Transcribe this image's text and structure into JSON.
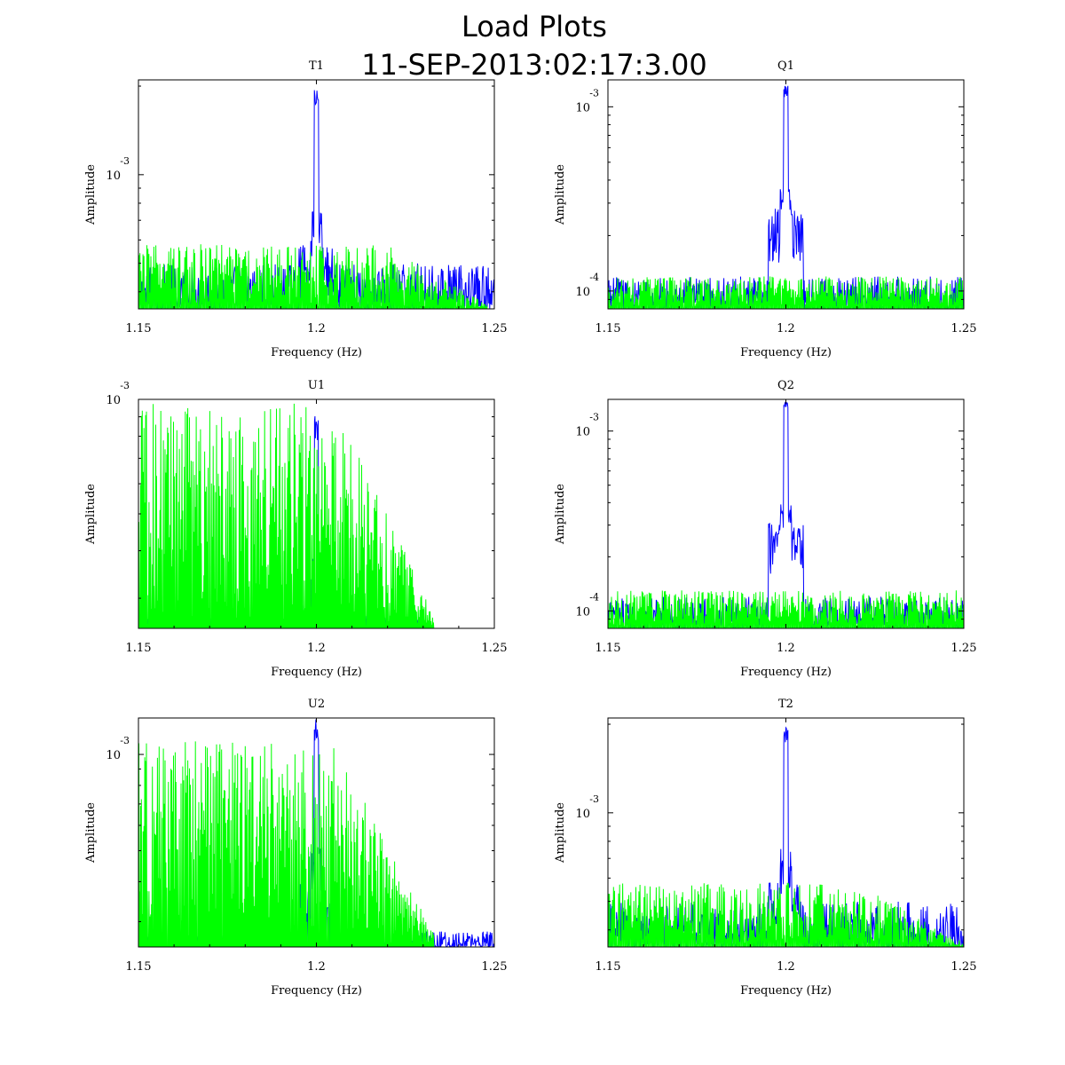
{
  "figure": {
    "title": "Load Plots",
    "subtitle": "11-SEP-2013:02:17:3.00",
    "colors": {
      "series_a": "#0000ff",
      "series_b": "#00ff00",
      "axes": "#000000"
    }
  },
  "chart_data": [
    {
      "type": "line",
      "title": "T1",
      "xlabel": "Frequency (Hz)",
      "ylabel": "Amplitude",
      "xlim": [
        1.15,
        1.25
      ],
      "xticks": [
        "1.15",
        "1.2",
        "1.25"
      ],
      "yscale": "log",
      "ylim": [
        0.00035,
        0.0021
      ],
      "ytick_labels": [
        {
          "value": 0.001,
          "base": "10",
          "exp": "-3"
        }
      ],
      "peak": {
        "x": 1.2,
        "y": 0.002
      },
      "series": [
        {
          "color": "#0000ff",
          "baseline": 0.00037,
          "peak": 0.002,
          "sidelobe": 0.00058,
          "noise_range": [
            0.00035,
            0.0005
          ],
          "x_range": [
            1.15,
            1.25
          ]
        },
        {
          "color": "#00ff00",
          "noise_range": [
            0.00035,
            0.00058
          ],
          "x_range": [
            1.15,
            1.248
          ],
          "envelope": "decays after 1.22"
        }
      ]
    },
    {
      "type": "line",
      "title": "Q1",
      "xlabel": "Frequency (Hz)",
      "ylabel": "Amplitude",
      "xlim": [
        1.15,
        1.25
      ],
      "xticks": [
        "1.15",
        "1.2",
        "1.25"
      ],
      "yscale": "log",
      "ylim": [
        8e-05,
        0.0014
      ],
      "ytick_labels": [
        {
          "value": 0.001,
          "base": "10",
          "exp": "-3"
        },
        {
          "value": 0.0001,
          "base": "10",
          "exp": "-4"
        }
      ],
      "peak": {
        "x": 1.2,
        "y": 0.0013
      },
      "series": [
        {
          "color": "#0000ff",
          "baseline": 9e-05,
          "peak": 0.0013,
          "sidelobe": 0.00028,
          "noise_range": [
            8e-05,
            0.00012
          ],
          "x_range": [
            1.15,
            1.25
          ]
        },
        {
          "color": "#00ff00",
          "noise_range": [
            8e-05,
            0.00012
          ],
          "x_range": [
            1.15,
            1.25
          ]
        }
      ]
    },
    {
      "type": "line",
      "title": "U1",
      "xlabel": "Frequency (Hz)",
      "ylabel": "Amplitude",
      "xlim": [
        1.15,
        1.25
      ],
      "xticks": [
        "1.15",
        "1.2",
        "1.25"
      ],
      "yscale": "log",
      "ylim": [
        0.00025,
        0.001
      ],
      "ytick_labels": [
        {
          "value": 0.001,
          "base": "10",
          "exp": "-3"
        }
      ],
      "peak": {
        "x": 1.2,
        "y": 0.00092
      },
      "series": [
        {
          "color": "#0000ff",
          "baseline": 0.00025,
          "peak": 0.00092,
          "sidelobe": 0.0003,
          "noise_range": [
            0.00025,
            0.00027
          ],
          "x_range": [
            1.15,
            1.23
          ]
        },
        {
          "color": "#00ff00",
          "noise_range": [
            0.00025,
            0.00098
          ],
          "x_range": [
            1.15,
            1.233
          ],
          "envelope": "decays after 1.205"
        }
      ]
    },
    {
      "type": "line",
      "title": "Q2",
      "xlabel": "Frequency (Hz)",
      "ylabel": "Amplitude",
      "xlim": [
        1.15,
        1.25
      ],
      "xticks": [
        "1.15",
        "1.2",
        "1.25"
      ],
      "yscale": "log",
      "ylim": [
        8e-05,
        0.0015
      ],
      "ytick_labels": [
        {
          "value": 0.001,
          "base": "10",
          "exp": "-3"
        },
        {
          "value": 0.0001,
          "base": "10",
          "exp": "-4"
        }
      ],
      "peak": {
        "x": 1.2,
        "y": 0.0015
      },
      "series": [
        {
          "color": "#0000ff",
          "baseline": 9e-05,
          "peak": 0.0015,
          "sidelobe": 0.00031,
          "noise_range": [
            8e-05,
            0.00012
          ],
          "x_range": [
            1.15,
            1.25
          ]
        },
        {
          "color": "#00ff00",
          "noise_range": [
            8e-05,
            0.00013
          ],
          "x_range": [
            1.15,
            1.25
          ]
        }
      ]
    },
    {
      "type": "line",
      "title": "U2",
      "xlabel": "Frequency (Hz)",
      "ylabel": "Amplitude",
      "xlim": [
        1.15,
        1.25
      ],
      "xticks": [
        "1.15",
        "1.2",
        "1.25"
      ],
      "yscale": "log",
      "ylim": [
        0.00025,
        0.0013
      ],
      "ytick_labels": [
        {
          "value": 0.001,
          "base": "10",
          "exp": "-3"
        }
      ],
      "peak": {
        "x": 1.2,
        "y": 0.0013
      },
      "series": [
        {
          "color": "#0000ff",
          "baseline": 0.00025,
          "peak": 0.0013,
          "sidelobe": 0.0004,
          "noise_range": [
            0.00025,
            0.00028
          ],
          "x_range": [
            1.15,
            1.25
          ]
        },
        {
          "color": "#00ff00",
          "noise_range": [
            0.00025,
            0.0011
          ],
          "x_range": [
            1.15,
            1.233
          ],
          "envelope": "decays after 1.205"
        }
      ]
    },
    {
      "type": "line",
      "title": "T2",
      "xlabel": "Frequency (Hz)",
      "ylabel": "Amplitude",
      "xlim": [
        1.15,
        1.25
      ],
      "xticks": [
        "1.15",
        "1.2",
        "1.25"
      ],
      "yscale": "log",
      "ylim": [
        0.00035,
        0.0021
      ],
      "ytick_labels": [
        {
          "value": 0.001,
          "base": "10",
          "exp": "-3"
        }
      ],
      "peak": {
        "x": 1.2,
        "y": 0.002
      },
      "series": [
        {
          "color": "#0000ff",
          "baseline": 0.00037,
          "peak": 0.002,
          "sidelobe": 0.00058,
          "noise_range": [
            0.00035,
            0.0005
          ],
          "x_range": [
            1.15,
            1.25
          ]
        },
        {
          "color": "#00ff00",
          "noise_range": [
            0.00035,
            0.00058
          ],
          "x_range": [
            1.15,
            1.25
          ],
          "envelope": "decays after 1.22"
        }
      ]
    }
  ]
}
